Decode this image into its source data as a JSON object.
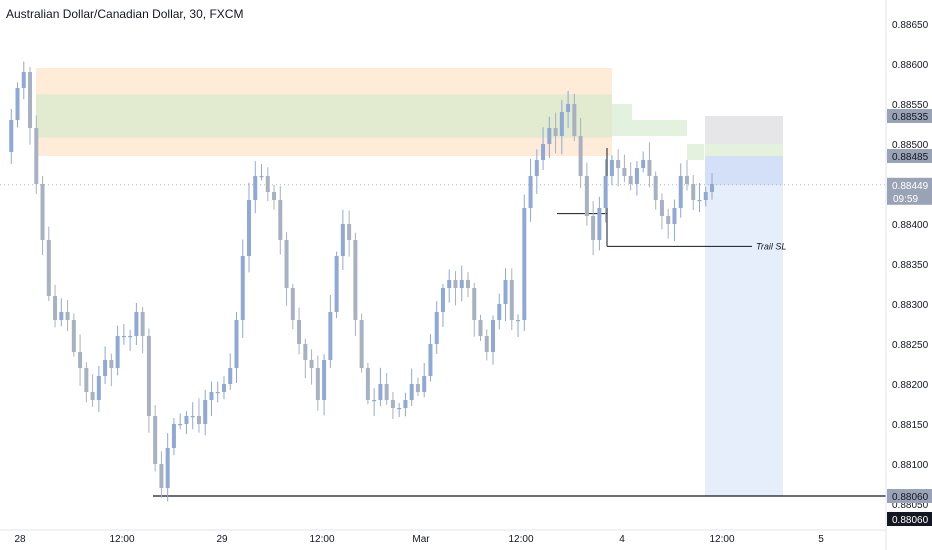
{
  "title": "Australian Dollar/Canadian Dollar, 30, FXCM",
  "countdown": "09:59",
  "annotations": {
    "trail_sl": "Trail SL"
  },
  "colors": {
    "candle": "#8fa8d6",
    "candle_dark": "#a7b1c2",
    "last_price_bg": "#9aa3b5",
    "level_bg": "#9aa3b5",
    "orange_zone": "#fde6cc",
    "green_zone": "#dfeacd",
    "long_profit_zone": "#e6eefb",
    "long_stop_zone": "#e6e6e8"
  },
  "chart_data": {
    "type": "candlestick",
    "instrument": "Australian Dollar/Canadian Dollar",
    "interval": "30",
    "source": "FXCM",
    "ylim": [
      0.8803,
      0.88685
    ],
    "y_ticks": [
      "0.88650",
      "0.88600",
      "0.88550",
      "0.88500",
      "0.88450",
      "0.88400",
      "0.88350",
      "0.88300",
      "0.88250",
      "0.88200",
      "0.88150",
      "0.88100",
      "0.88050"
    ],
    "x_labels": [
      "28",
      "12:00",
      "29",
      "12:00",
      "Mar",
      "12:00",
      "4",
      "12:00",
      "5"
    ],
    "last_price": "0.88449",
    "price_labels": [
      "0.88535",
      "0.88485",
      "0.88060"
    ],
    "key_levels": {
      "bottom_line": "0.88060",
      "trail_sl": 0.88372,
      "step_level": 0.88413
    },
    "zones": {
      "orange_supply": {
        "from": 0.88485,
        "to": 0.88595
      },
      "green_supply": {
        "from": 0.88508,
        "to": 0.88562
      },
      "long_entry": 0.88485,
      "long_stop": 0.88535,
      "long_target": 0.8806
    },
    "price_path": [
      0.8849,
      0.8853,
      0.8857,
      0.8859,
      0.8852,
      0.8845,
      0.8838,
      0.8831,
      0.8828,
      0.8829,
      0.8828,
      0.8824,
      0.8822,
      0.8819,
      0.8818,
      0.8821,
      0.8823,
      0.8822,
      0.8826,
      0.8826,
      0.8826,
      0.8829,
      0.8826,
      0.8816,
      0.881,
      0.8807,
      0.8812,
      0.8815,
      0.8815,
      0.8816,
      0.8816,
      0.8815,
      0.8818,
      0.8819,
      0.8819,
      0.882,
      0.8822,
      0.8828,
      0.8836,
      0.8843,
      0.8846,
      0.8846,
      0.8844,
      0.8843,
      0.8838,
      0.8832,
      0.8828,
      0.8825,
      0.8823,
      0.8822,
      0.8818,
      0.8823,
      0.8829,
      0.8836,
      0.884,
      0.8838,
      0.8828,
      0.8822,
      0.8818,
      0.8818,
      0.882,
      0.8818,
      0.8817,
      0.8817,
      0.8818,
      0.882,
      0.8819,
      0.8821,
      0.8825,
      0.8829,
      0.8832,
      0.8833,
      0.8832,
      0.8833,
      0.8832,
      0.8828,
      0.8826,
      0.8824,
      0.8828,
      0.883,
      0.8833,
      0.8828,
      0.8828,
      0.8842,
      0.8846,
      0.8848,
      0.885,
      0.8852,
      0.8851,
      0.8854,
      0.8855,
      0.8851,
      0.8846,
      0.8841,
      0.8838,
      0.8842,
      0.8846,
      0.8848,
      0.8847,
      0.8846,
      0.8845,
      0.8847,
      0.8848,
      0.8846,
      0.8843,
      0.8841,
      0.884,
      0.8842,
      0.8846,
      0.8845,
      0.8843,
      0.8843,
      0.8844,
      0.8845
    ]
  }
}
